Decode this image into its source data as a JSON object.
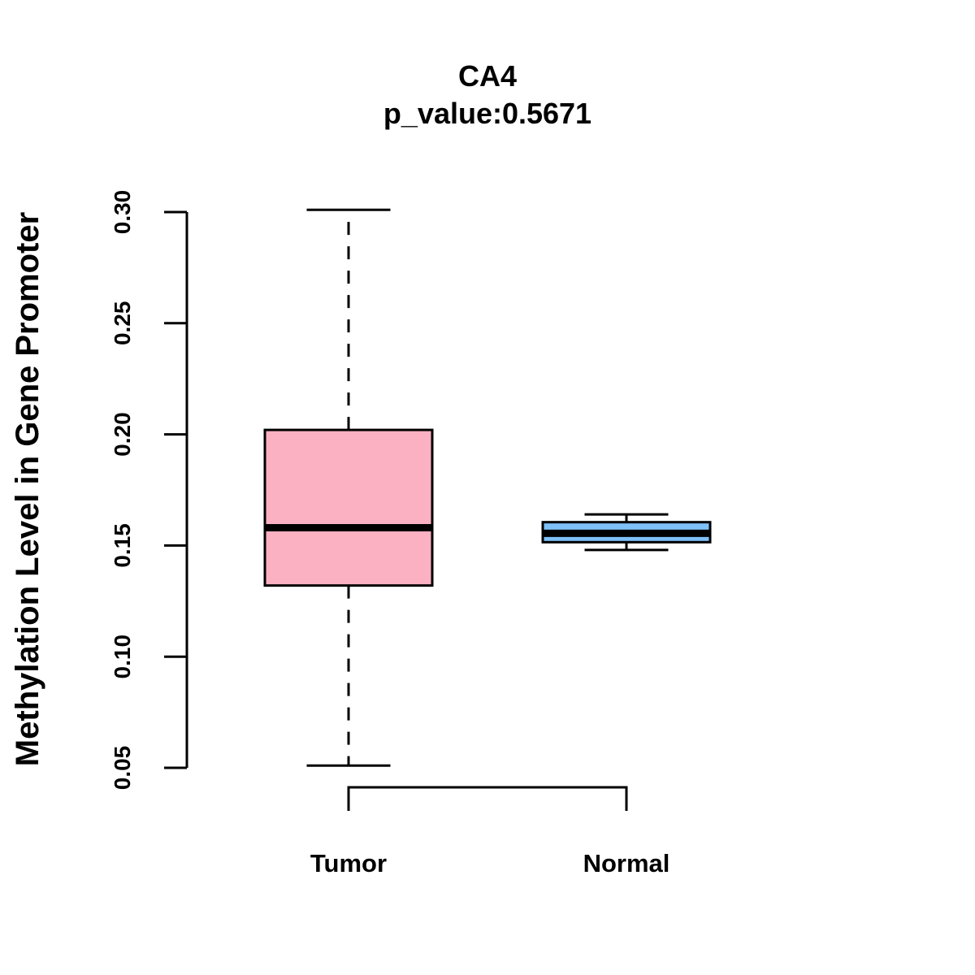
{
  "chart_data": {
    "type": "box",
    "title": "CA4",
    "subtitle": "p_value:0.5671",
    "xlabel": "",
    "ylabel": "Methylation Level in Gene Promoter",
    "ylim": [
      0.04,
      0.3
    ],
    "yticks": [
      0.05,
      0.1,
      0.15,
      0.2,
      0.25,
      0.3
    ],
    "ytick_labels": [
      "0.05",
      "0.10",
      "0.15",
      "0.20",
      "0.25",
      "0.30"
    ],
    "categories": [
      "Tumor",
      "Normal"
    ],
    "boxes": [
      {
        "name": "Tumor",
        "color": "#fbb1c2",
        "whisker_low": 0.051,
        "q1": 0.132,
        "median": 0.158,
        "q3": 0.202,
        "whisker_high": 0.301
      },
      {
        "name": "Normal",
        "color": "#7ec0f8",
        "whisker_low": 0.148,
        "q1": 0.1515,
        "median": 0.1555,
        "q3": 0.1605,
        "whisker_high": 0.164
      }
    ],
    "comparison_bracket": [
      "Tumor",
      "Normal"
    ],
    "grid": false,
    "legend": "none"
  }
}
